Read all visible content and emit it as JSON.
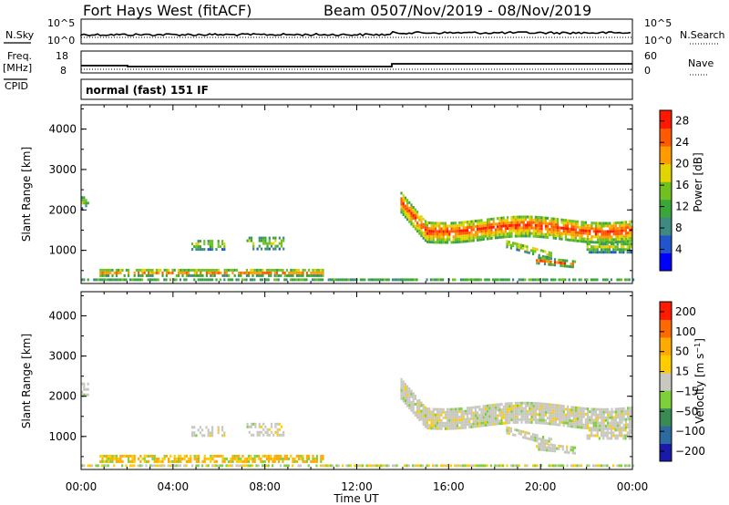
{
  "header": {
    "title": "Fort Hays West (fitACF)",
    "beam": "Beam 05",
    "date_range": "07/Nov/2019 - 08/Nov/2019"
  },
  "panels": {
    "nsky_label": "N.Sky",
    "nsearch_label": "N.Search",
    "noise_ticks_left": [
      "10^5",
      "10^0"
    ],
    "noise_ticks_right": [
      "10^5",
      "10^0"
    ],
    "freq_label": "Freq.",
    "freq_unit": "[MHz]",
    "freq_ticks": [
      "18",
      "8"
    ],
    "nave_label": "Nave",
    "nave_ticks": [
      "60",
      "0"
    ],
    "cpid_label": "CPID",
    "cpid_text": "normal (fast) 151 IF"
  },
  "chart_data": [
    {
      "type": "heatmap",
      "title": "Power",
      "ylabel": "Slant Range [km]",
      "xlabel": "Time UT",
      "y_ticks": [
        "4000",
        "3000",
        "2000",
        "1000"
      ],
      "x_ticks": [
        "00:00",
        "04:00",
        "08:00",
        "12:00",
        "16:00",
        "20:00",
        "00:00"
      ],
      "ylim": [
        180,
        4600
      ],
      "colorbar": {
        "label": "Power [dB]",
        "ticks": [
          "28",
          "24",
          "20",
          "16",
          "12",
          "8",
          "4"
        ],
        "range": [
          0,
          30
        ],
        "colors": [
          "#0000ff",
          "#2255cc",
          "#3e8a82",
          "#3aa63a",
          "#70c020",
          "#e2d400",
          "#ff9a00",
          "#ff5a00",
          "#ff1800"
        ]
      }
    },
    {
      "type": "heatmap",
      "title": "Velocity",
      "ylabel": "Slant Range [km]",
      "xlabel": "Time UT",
      "y_ticks": [
        "4000",
        "3000",
        "2000",
        "1000"
      ],
      "x_ticks": [
        "00:00",
        "04:00",
        "08:00",
        "12:00",
        "16:00",
        "20:00",
        "00:00"
      ],
      "ylim": [
        180,
        4600
      ],
      "colorbar": {
        "label": "Velocity [m s^-1]",
        "ticks": [
          "200",
          "100",
          "50",
          "15",
          "-15",
          "-50",
          "-100",
          "-200"
        ],
        "colors": [
          "#1a1aa8",
          "#2d6aa0",
          "#3a8a55",
          "#7ed03a",
          "#c8c8c0",
          "#ffcc00",
          "#ffaa00",
          "#ff6a00",
          "#ff1a00"
        ]
      }
    }
  ]
}
